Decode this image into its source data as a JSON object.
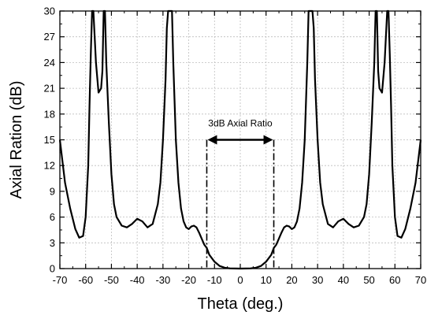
{
  "chart_data": {
    "type": "line",
    "title": "",
    "xlabel": "Theta (deg.)",
    "ylabel": "Axial Ration (dB)",
    "xlim": [
      -70,
      70
    ],
    "ylim": [
      0,
      30
    ],
    "xticks": [
      -70,
      -60,
      -50,
      -40,
      -30,
      -20,
      -10,
      0,
      10,
      20,
      30,
      40,
      50,
      60,
      70
    ],
    "yticks": [
      0,
      3,
      6,
      9,
      12,
      15,
      18,
      21,
      24,
      27,
      30
    ],
    "grid": true,
    "line_color": "#000000",
    "grid_color": "#bdbdbd",
    "series": [
      {
        "x": [
          -70,
          -68,
          -66,
          -64,
          -62.5,
          -61,
          -60,
          -59,
          -58.5,
          -58,
          -57.5,
          -57,
          -56,
          -55,
          -54,
          -53.5,
          -53,
          -52.5,
          -52,
          -51,
          -50,
          -49,
          -48,
          -46,
          -44,
          -42,
          -40,
          -38,
          -36,
          -34,
          -32,
          -31,
          -30,
          -29,
          -28.5,
          -28,
          -27.5,
          -27,
          -26.5,
          -26,
          -25,
          -24,
          -23,
          -22,
          -21,
          -20,
          -19,
          -18,
          -17,
          -16,
          -15,
          -14,
          -13,
          -12,
          -10,
          -8,
          -6,
          -4,
          -2,
          0,
          2,
          4,
          6,
          8,
          10,
          12,
          13,
          14,
          15,
          16,
          17,
          18,
          19,
          20,
          21,
          22,
          23,
          24,
          25,
          26,
          26.5,
          27,
          27.5,
          28,
          28.5,
          29,
          30,
          31,
          32,
          34,
          36,
          38,
          40,
          42,
          44,
          46,
          48,
          49,
          50,
          51,
          52,
          52.5,
          53,
          53.5,
          54,
          55,
          56,
          57,
          57.5,
          58,
          58.5,
          59,
          60,
          61,
          62.5,
          64,
          66,
          68,
          70
        ],
        "y": [
          15,
          10,
          7,
          4.6,
          3.6,
          3.8,
          6,
          12,
          19,
          25,
          30,
          30,
          24,
          20.5,
          21,
          23,
          30,
          30,
          24,
          17,
          11,
          7.5,
          6,
          5,
          4.8,
          5.2,
          5.8,
          5.5,
          4.8,
          5.2,
          7.5,
          10,
          15,
          22,
          28,
          30,
          30,
          30,
          30,
          24,
          15,
          10,
          7,
          5.5,
          4.8,
          4.6,
          4.9,
          5.0,
          4.8,
          4.2,
          3.5,
          2.8,
          2.4,
          1.6,
          0.8,
          0.3,
          0.1,
          0.03,
          0.01,
          0,
          0.01,
          0.03,
          0.1,
          0.3,
          0.8,
          1.6,
          2.4,
          2.8,
          3.5,
          4.2,
          4.8,
          5.0,
          4.9,
          4.6,
          4.8,
          5.5,
          7,
          10,
          15,
          24,
          30,
          30,
          30,
          30,
          28,
          22,
          15,
          10,
          7.5,
          5.2,
          4.8,
          5.5,
          5.8,
          5.2,
          4.8,
          5,
          6,
          7.5,
          11,
          17,
          24,
          30,
          30,
          23,
          21,
          20.5,
          24,
          30,
          30,
          25,
          19,
          12,
          6,
          3.8,
          3.6,
          4.6,
          7,
          10,
          15
        ]
      }
    ],
    "annotation": {
      "text": "3dB Axial Ratio",
      "x_left": -13,
      "x_right": 13,
      "arrow_y": 15
    }
  }
}
